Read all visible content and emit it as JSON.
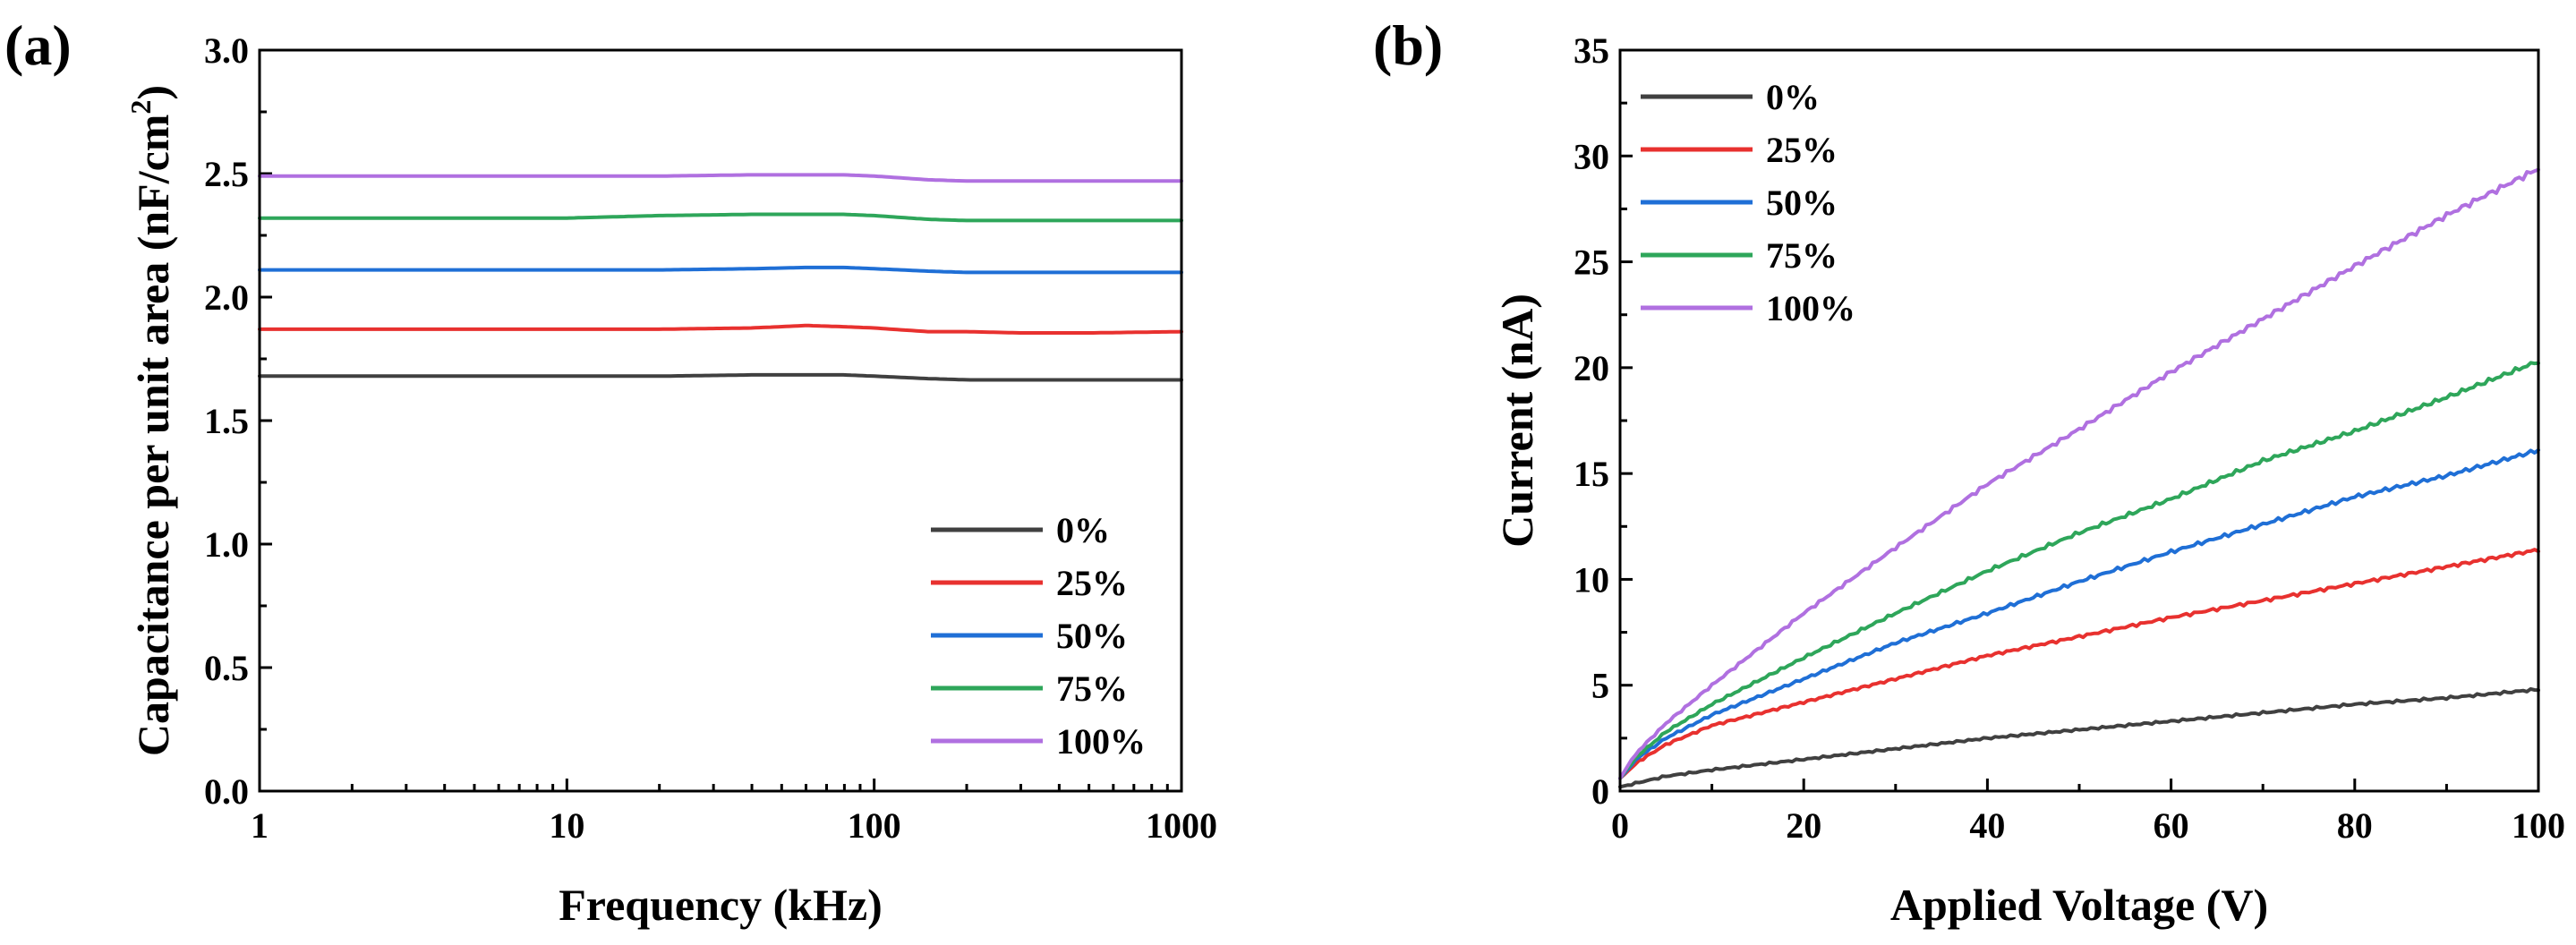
{
  "chart_data": [
    {
      "panel_label": "(a)",
      "type": "line",
      "xlabel": "Frequency (kHz)",
      "ylabel_main": "Capacitance per unit area (nF/cm",
      "ylabel_sup": "2",
      "ylabel_close": ")",
      "xscale": "log",
      "xlim": [
        1,
        1000
      ],
      "ylim": [
        0.0,
        3.0
      ],
      "x_ticks": [
        1,
        10,
        100,
        1000
      ],
      "x_tick_labels": [
        "1",
        "10",
        "100",
        "1000"
      ],
      "y_ticks": [
        0.0,
        0.5,
        1.0,
        1.5,
        2.0,
        2.5,
        3.0
      ],
      "y_tick_labels": [
        "0.0",
        "0.5",
        "1.0",
        "1.5",
        "2.0",
        "2.5",
        "3.0"
      ],
      "legend_position": "lower-right",
      "x": [
        1,
        3,
        10,
        20,
        40,
        60,
        80,
        100,
        150,
        200,
        300,
        500,
        1000
      ],
      "series": [
        {
          "name": "0%",
          "color": "#404040",
          "values": [
            1.68,
            1.68,
            1.68,
            1.68,
            1.685,
            1.685,
            1.685,
            1.68,
            1.67,
            1.665,
            1.665,
            1.665,
            1.665
          ]
        },
        {
          "name": "25%",
          "color": "#e8312f",
          "values": [
            1.87,
            1.87,
            1.87,
            1.87,
            1.875,
            1.885,
            1.88,
            1.875,
            1.86,
            1.86,
            1.855,
            1.855,
            1.86
          ]
        },
        {
          "name": "50%",
          "color": "#1f6fd6",
          "values": [
            2.11,
            2.11,
            2.11,
            2.11,
            2.115,
            2.12,
            2.12,
            2.115,
            2.105,
            2.1,
            2.1,
            2.1,
            2.1
          ]
        },
        {
          "name": "75%",
          "color": "#2ea65a",
          "values": [
            2.32,
            2.32,
            2.32,
            2.33,
            2.335,
            2.335,
            2.335,
            2.33,
            2.315,
            2.31,
            2.31,
            2.31,
            2.31
          ]
        },
        {
          "name": "100%",
          "color": "#b070e0",
          "values": [
            2.49,
            2.49,
            2.49,
            2.49,
            2.495,
            2.495,
            2.495,
            2.49,
            2.475,
            2.47,
            2.47,
            2.47,
            2.47
          ]
        }
      ]
    },
    {
      "panel_label": "(b)",
      "type": "line",
      "xlabel": "Applied Voltage (V)",
      "ylabel": "Current (nA)",
      "xscale": "linear",
      "xlim": [
        0,
        100
      ],
      "ylim": [
        0,
        35
      ],
      "x_ticks": [
        0,
        20,
        40,
        60,
        80,
        100
      ],
      "x_tick_labels": [
        "0",
        "20",
        "40",
        "60",
        "80",
        "100"
      ],
      "y_ticks": [
        0,
        5,
        10,
        15,
        20,
        25,
        30,
        35
      ],
      "y_tick_labels": [
        "0",
        "5",
        "10",
        "15",
        "20",
        "25",
        "30",
        "35"
      ],
      "legend_position": "top-left",
      "x": [
        0,
        1,
        2,
        5,
        10,
        20,
        30,
        40,
        50,
        60,
        70,
        80,
        90,
        100
      ],
      "series": [
        {
          "name": "0%",
          "color": "#404040",
          "values": [
            0.2,
            0.3,
            0.4,
            0.7,
            1.0,
            1.5,
            2.0,
            2.5,
            2.9,
            3.3,
            3.7,
            4.1,
            4.4,
            4.8
          ]
        },
        {
          "name": "25%",
          "color": "#e8312f",
          "values": [
            0.6,
            1.0,
            1.4,
            2.2,
            3.1,
            4.2,
            5.3,
            6.4,
            7.3,
            8.2,
            9.0,
            9.8,
            10.6,
            11.4
          ]
        },
        {
          "name": "50%",
          "color": "#1f6fd6",
          "values": [
            0.6,
            1.1,
            1.6,
            2.5,
            3.6,
            5.3,
            7.0,
            8.4,
            9.9,
            11.3,
            12.6,
            13.9,
            14.9,
            16.1
          ]
        },
        {
          "name": "75%",
          "color": "#2ea65a",
          "values": [
            0.6,
            1.2,
            1.7,
            2.8,
            4.1,
            6.3,
            8.4,
            10.4,
            12.2,
            13.8,
            15.6,
            17.0,
            18.6,
            20.3
          ]
        },
        {
          "name": "100%",
          "color": "#b070e0",
          "values": [
            0.6,
            1.3,
            1.9,
            3.2,
            5.0,
            8.4,
            11.5,
            14.5,
            17.1,
            19.8,
            22.3,
            24.8,
            27.2,
            29.4
          ]
        }
      ]
    }
  ]
}
